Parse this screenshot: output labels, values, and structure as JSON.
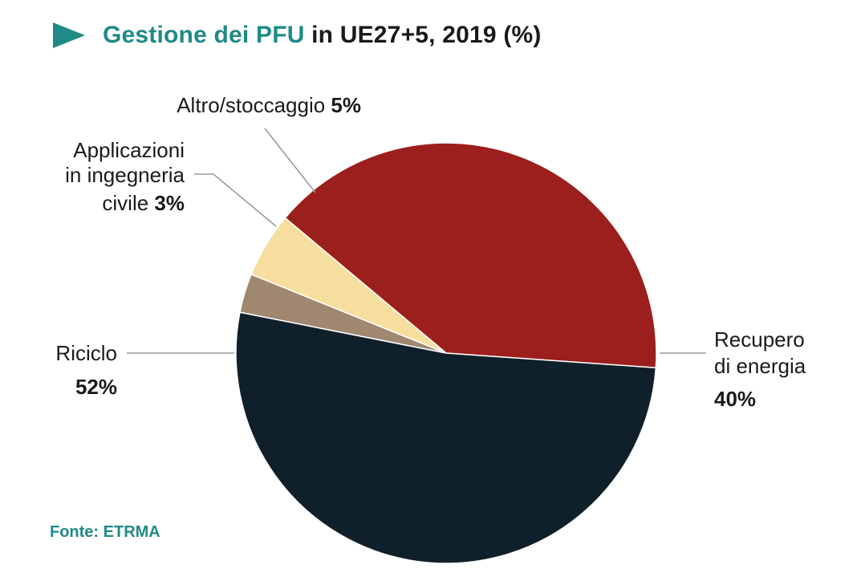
{
  "title": {
    "prefix": "Gestione dei PFU",
    "suffix": " in UE27+5, 2019 (%)",
    "accent_color": "#1f8a87"
  },
  "source": "Fonte: ETRMA",
  "chart_data": {
    "type": "pie",
    "unit": "%",
    "slices": [
      {
        "label_lines": [
          "Recupero",
          "di energia"
        ],
        "value": 40,
        "value_label": "40%",
        "color": "#9b1f1c"
      },
      {
        "label_lines": [
          "Riciclo"
        ],
        "value": 52,
        "value_label": "52%",
        "color": "#10202b"
      },
      {
        "label_lines": [
          "Applicazioni",
          "in ingegneria",
          "civile"
        ],
        "value": 3,
        "value_label": "3%",
        "color": "#a08770"
      },
      {
        "label_lines": [
          "Altro/stoccaggio"
        ],
        "value": 5,
        "value_label": "5%",
        "color": "#f6de9e"
      }
    ]
  }
}
